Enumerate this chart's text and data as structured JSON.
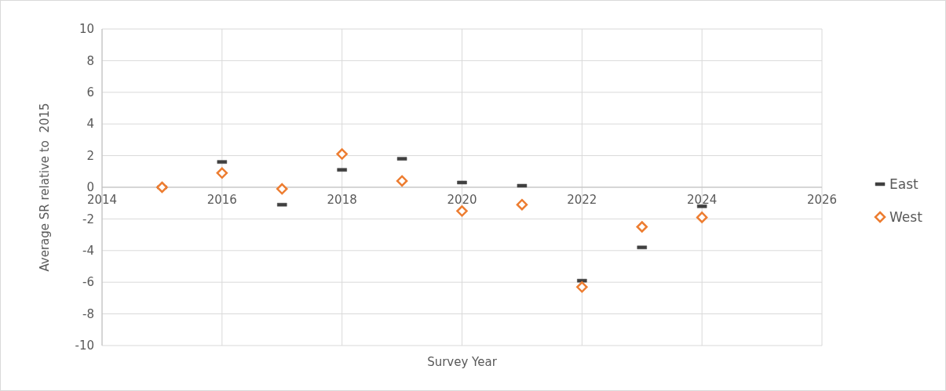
{
  "chart_data": {
    "type": "scatter",
    "xlabel": "Survey Year",
    "ylabel": "Average SR relative to  2015",
    "x": [
      2015,
      2016,
      2017,
      2018,
      2019,
      2020,
      2021,
      2022,
      2023,
      2024
    ],
    "series": [
      {
        "name": "East",
        "color": "#404040",
        "values": [
          0,
          1.6,
          -1.1,
          1.1,
          1.8,
          0.3,
          0.1,
          -5.9,
          -3.8,
          -1.2
        ]
      },
      {
        "name": "West",
        "color": "#ed7d31",
        "marker": "diamond",
        "values": [
          0,
          0.9,
          -0.1,
          2.1,
          0.4,
          -1.5,
          -1.1,
          -6.3,
          -2.5,
          -1.9
        ]
      }
    ],
    "xlim": [
      2014,
      2026
    ],
    "xticks": [
      2014,
      2016,
      2018,
      2020,
      2022,
      2024,
      2026
    ],
    "ylim": [
      -10,
      10
    ],
    "yticks": [
      -10,
      -8,
      -6,
      -4,
      -2,
      0,
      2,
      4,
      6,
      8,
      10
    ],
    "grid": true,
    "legend": "right"
  }
}
